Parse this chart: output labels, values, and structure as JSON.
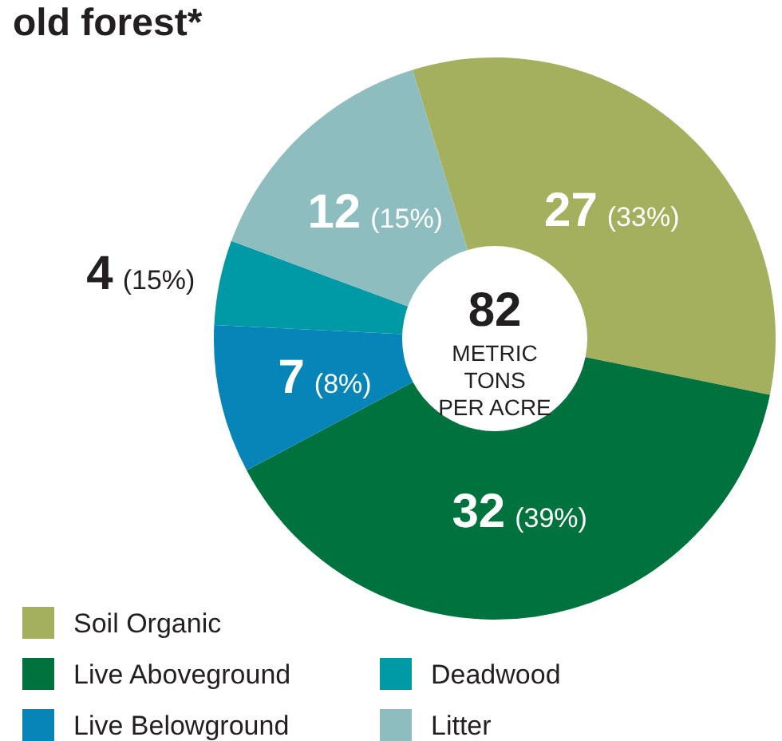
{
  "chart_data": {
    "type": "donut",
    "title": "old forest*",
    "categories": [
      "Soil Organic",
      "Live Aboveground",
      "Live Belowground",
      "Deadwood",
      "Litter"
    ],
    "values": [
      27,
      32,
      7,
      4,
      12
    ],
    "colors": [
      "#a4b05e",
      "#00723d",
      "#0784b8",
      "#009aa6",
      "#8dbdbf"
    ],
    "value_labels": [
      "27 (33%)",
      "32 (39%)",
      "7 (8%)",
      "4 (15%)",
      "12 (15%)"
    ],
    "annotations": [
      "82",
      "METRIC TONS PER ACRE"
    ],
    "legend": "bottom left"
  }
}
